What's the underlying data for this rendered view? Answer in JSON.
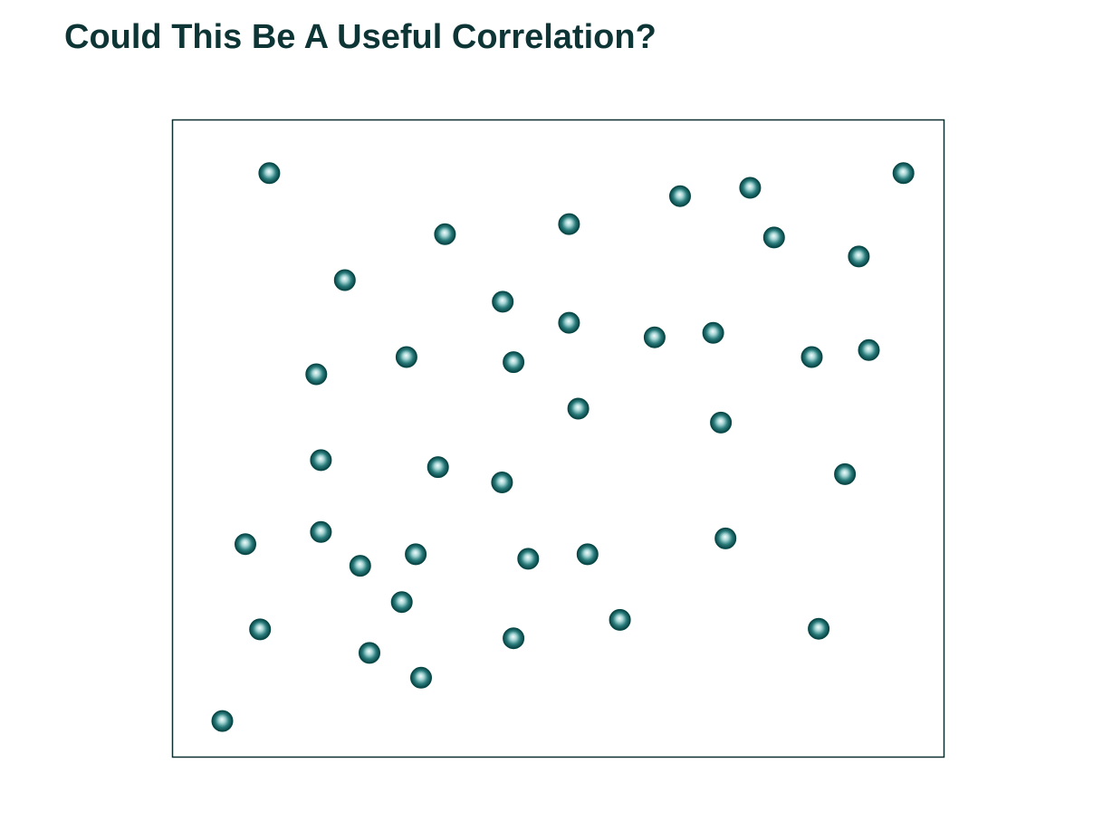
{
  "slide": {
    "title": "Could This Be A Useful Correlation?"
  },
  "colors": {
    "title": "#0d3535",
    "frame": "#0d2e2e",
    "marker_dark": "#0b5a5a",
    "marker_light": "#e6f5f5"
  },
  "chart_data": {
    "type": "scatter",
    "title": "",
    "xlabel": "",
    "ylabel": "",
    "xlim": [
      0,
      100
    ],
    "ylim": [
      0,
      100
    ],
    "grid": false,
    "axes_ticks": false,
    "marker_style": "shaded teal sphere",
    "points": [
      {
        "x": 12.5,
        "y": 91.7
      },
      {
        "x": 94.8,
        "y": 91.7
      },
      {
        "x": 65.8,
        "y": 88.1
      },
      {
        "x": 74.9,
        "y": 89.4
      },
      {
        "x": 51.4,
        "y": 83.7
      },
      {
        "x": 35.3,
        "y": 82.1
      },
      {
        "x": 78.0,
        "y": 81.6
      },
      {
        "x": 89.0,
        "y": 78.6
      },
      {
        "x": 22.3,
        "y": 74.9
      },
      {
        "x": 42.8,
        "y": 71.5
      },
      {
        "x": 51.4,
        "y": 68.2
      },
      {
        "x": 62.5,
        "y": 65.9
      },
      {
        "x": 70.1,
        "y": 66.6
      },
      {
        "x": 90.3,
        "y": 63.9
      },
      {
        "x": 30.3,
        "y": 62.8
      },
      {
        "x": 82.9,
        "y": 62.8
      },
      {
        "x": 44.2,
        "y": 62.0
      },
      {
        "x": 18.6,
        "y": 60.1
      },
      {
        "x": 52.6,
        "y": 54.7
      },
      {
        "x": 71.1,
        "y": 52.5
      },
      {
        "x": 19.2,
        "y": 46.6
      },
      {
        "x": 34.4,
        "y": 45.5
      },
      {
        "x": 42.7,
        "y": 43.1
      },
      {
        "x": 87.2,
        "y": 44.4
      },
      {
        "x": 19.2,
        "y": 35.3
      },
      {
        "x": 71.7,
        "y": 34.3
      },
      {
        "x": 9.4,
        "y": 33.4
      },
      {
        "x": 31.5,
        "y": 31.8
      },
      {
        "x": 53.8,
        "y": 31.8
      },
      {
        "x": 46.1,
        "y": 31.1
      },
      {
        "x": 24.3,
        "y": 30.0
      },
      {
        "x": 29.7,
        "y": 24.3
      },
      {
        "x": 58.0,
        "y": 21.5
      },
      {
        "x": 11.3,
        "y": 20.0
      },
      {
        "x": 83.8,
        "y": 20.1
      },
      {
        "x": 44.2,
        "y": 18.6
      },
      {
        "x": 25.5,
        "y": 16.3
      },
      {
        "x": 32.2,
        "y": 12.4
      },
      {
        "x": 6.4,
        "y": 5.6
      }
    ]
  }
}
